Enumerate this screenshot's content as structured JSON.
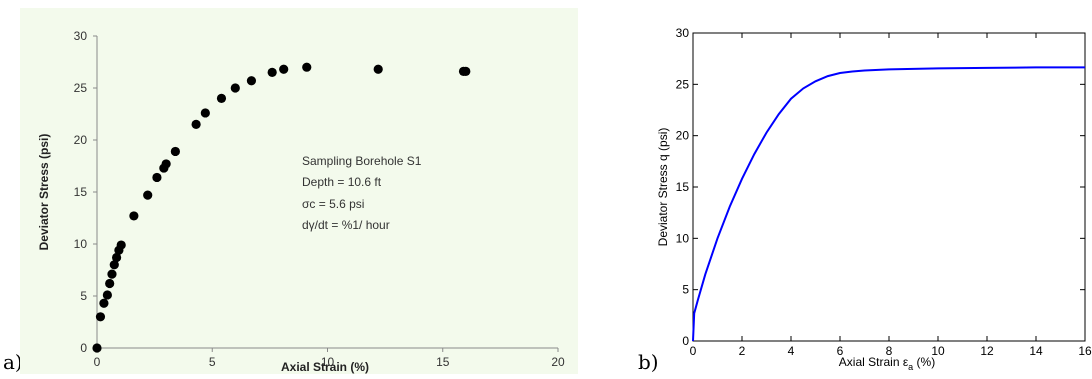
{
  "panels": {
    "a_label": "a)",
    "b_label": "b)"
  },
  "annotation": {
    "line1": "Sampling Borehole S1",
    "line2": "Depth =  10.6 ft",
    "line3": "σc = 5.6 psi",
    "line4": "dγ/dt = %1/ hour"
  },
  "chart_data": [
    {
      "type": "scatter",
      "title": "",
      "xlabel": "Axial Strain (%)",
      "ylabel": "Deviator Stress (psi)",
      "xlim": [
        0,
        20
      ],
      "ylim": [
        0,
        30
      ],
      "xticks": [
        "0",
        "5",
        "10",
        "15",
        "20"
      ],
      "yticks": [
        "0",
        "5",
        "10",
        "15",
        "20",
        "25",
        "30"
      ],
      "background": "#f3faec",
      "marker_color": "#000000",
      "grid": false,
      "points": [
        [
          0.0,
          0.0
        ],
        [
          0.15,
          3.0
        ],
        [
          0.3,
          4.3
        ],
        [
          0.45,
          5.1
        ],
        [
          0.55,
          6.2
        ],
        [
          0.65,
          7.1
        ],
        [
          0.75,
          8.0
        ],
        [
          0.85,
          8.7
        ],
        [
          0.95,
          9.4
        ],
        [
          1.05,
          9.9
        ],
        [
          1.6,
          12.7
        ],
        [
          2.2,
          14.7
        ],
        [
          2.6,
          16.4
        ],
        [
          2.9,
          17.3
        ],
        [
          3.0,
          17.7
        ],
        [
          3.4,
          18.9
        ],
        [
          4.3,
          21.5
        ],
        [
          4.7,
          22.6
        ],
        [
          5.4,
          24.0
        ],
        [
          6.0,
          25.0
        ],
        [
          6.7,
          25.7
        ],
        [
          7.6,
          26.5
        ],
        [
          8.1,
          26.8
        ],
        [
          9.1,
          27.0
        ],
        [
          12.2,
          26.8
        ],
        [
          15.9,
          26.6
        ],
        [
          16.0,
          26.6
        ]
      ]
    },
    {
      "type": "line",
      "title": "",
      "xlabel": "Axial Strain ε_a (%)",
      "ylabel": "Deviator Stress q (psi)",
      "xlim": [
        0,
        16
      ],
      "ylim": [
        0,
        30
      ],
      "xticks": [
        "0",
        "2",
        "4",
        "6",
        "8",
        "10",
        "12",
        "14",
        "16"
      ],
      "yticks": [
        "0",
        "5",
        "10",
        "15",
        "20",
        "25",
        "30"
      ],
      "line_color": "#0000ff",
      "grid": false,
      "x": [
        0,
        0.05,
        0.2,
        0.5,
        1.0,
        1.5,
        2.0,
        2.5,
        3.0,
        3.5,
        4.0,
        4.5,
        5.0,
        5.5,
        6.0,
        6.5,
        7.0,
        8.0,
        10.0,
        12.0,
        14.0,
        16.0
      ],
      "y": [
        0,
        2.7,
        4.0,
        6.5,
        10.0,
        13.1,
        15.8,
        18.2,
        20.3,
        22.1,
        23.6,
        24.6,
        25.3,
        25.8,
        26.1,
        26.25,
        26.35,
        26.45,
        26.55,
        26.6,
        26.65,
        26.65
      ]
    }
  ]
}
